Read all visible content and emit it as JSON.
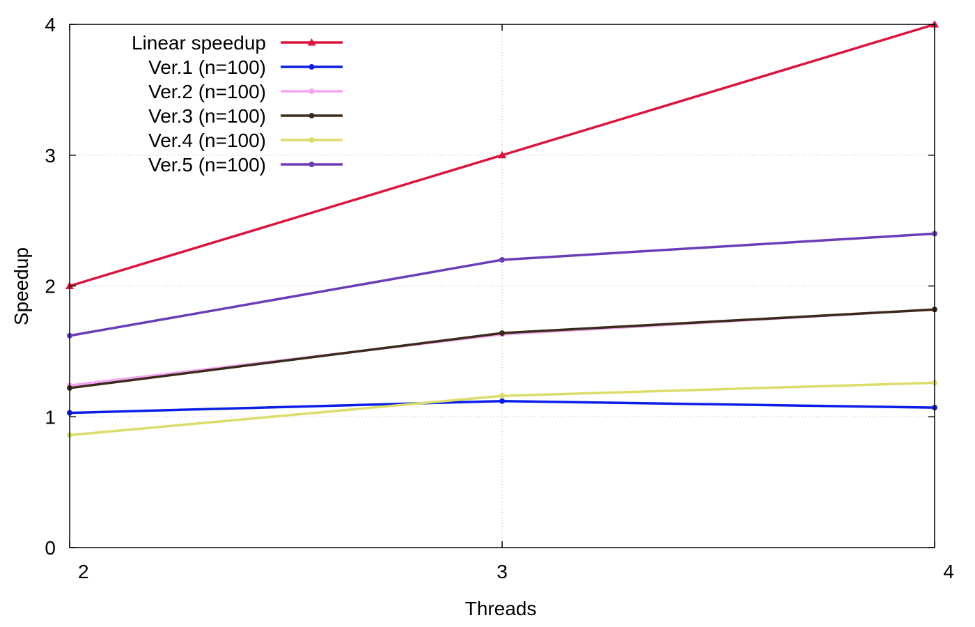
{
  "chart_data": {
    "type": "line",
    "xlabel": "Threads",
    "ylabel": "Speedup",
    "xlim": [
      2,
      4
    ],
    "ylim": [
      0,
      4
    ],
    "x_ticks": [
      2,
      3,
      4
    ],
    "y_ticks": [
      0,
      1,
      2,
      3,
      4
    ],
    "grid": true,
    "legend_position": "top-left",
    "x": [
      2,
      3,
      4
    ],
    "series": [
      {
        "name": "Linear speedup",
        "values": [
          2,
          3,
          4
        ],
        "color": "#dc143c",
        "marker": "triangle"
      },
      {
        "name": "Ver.1 (n=100)",
        "values": [
          1.03,
          1.12,
          1.07
        ],
        "color": "#0a1ee6",
        "marker": "circle"
      },
      {
        "name": "Ver.2 (n=100)",
        "values": [
          1.24,
          1.63,
          1.82
        ],
        "color": "#f4a4f0",
        "marker": "circle"
      },
      {
        "name": "Ver.3 (n=100)",
        "values": [
          1.22,
          1.64,
          1.82
        ],
        "color": "#3a2a1a",
        "marker": "circle"
      },
      {
        "name": "Ver.4 (n=100)",
        "values": [
          0.86,
          1.16,
          1.26
        ],
        "color": "#dcdc6a",
        "marker": "circle"
      },
      {
        "name": "Ver.5 (n=100)",
        "values": [
          1.62,
          2.2,
          2.4
        ],
        "color": "#6a3db8",
        "marker": "circle"
      }
    ]
  }
}
